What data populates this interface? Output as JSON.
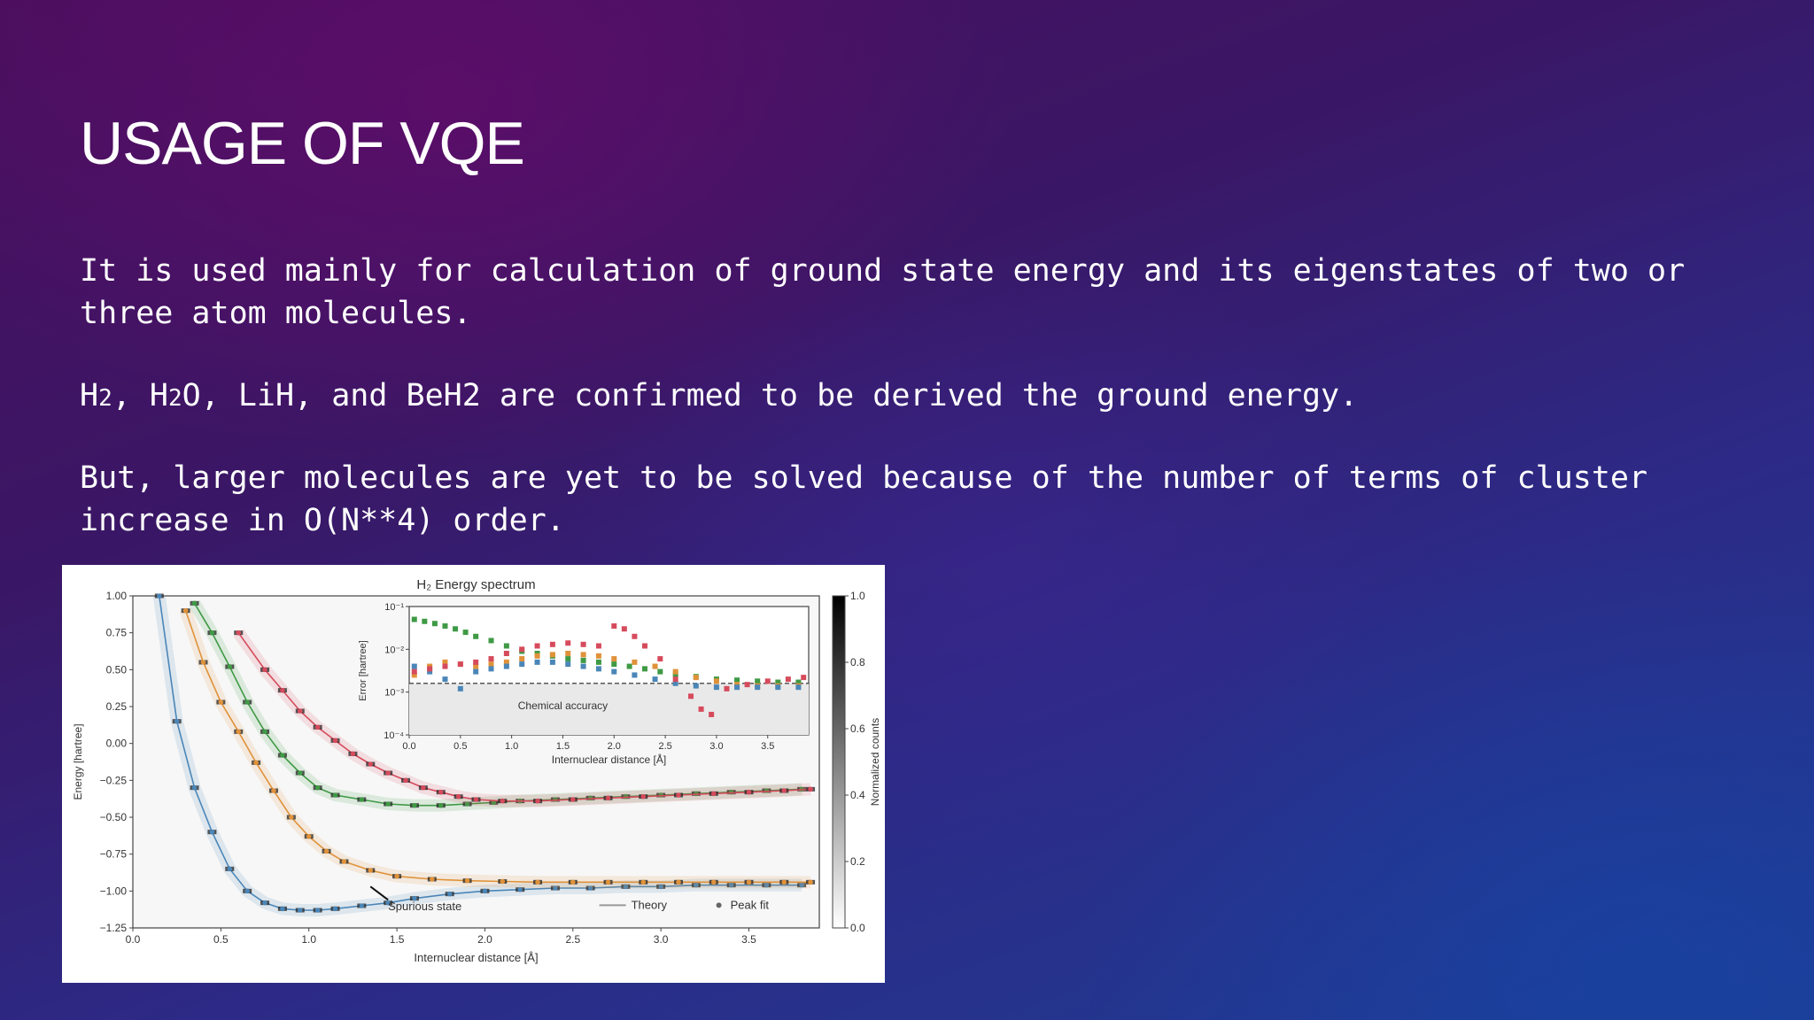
{
  "slide": {
    "title": "USAGE OF VQE",
    "paragraphs": [
      "It is used mainly for calculation of ground state energy and its eigenstates of two or three atom molecules.",
      "H2, H2O, LiH, and BeH2 are confirmed to be derived the ground energy.",
      "But, larger molecules are yet to be solved because of the number of terms of cluster increase in O(N**4) order."
    ]
  },
  "chart_data": [
    {
      "type": "line",
      "title": "H₂ Energy spectrum",
      "xlabel": "Internuclear distance [Å]",
      "ylabel": "Energy [hartree]",
      "xlim": [
        0.0,
        3.9
      ],
      "ylim": [
        -1.25,
        1.0
      ],
      "xticks": [
        "0.0",
        "0.5",
        "1.0",
        "1.5",
        "2.0",
        "2.5",
        "3.0",
        "3.5"
      ],
      "yticks": [
        "1.00",
        "0.75",
        "0.50",
        "0.25",
        "0.00",
        "−0.25",
        "−0.50",
        "−0.75",
        "−1.00",
        "−1.25"
      ],
      "legend": [
        "Theory",
        "Peak fit"
      ],
      "legend_position": "bottom-right",
      "annotation": "Spurious state",
      "colorbar": {
        "label": "Normalized counts",
        "ticks": [
          "0.0",
          "0.2",
          "0.4",
          "0.6",
          "0.8",
          "1.0"
        ],
        "range": [
          0,
          1
        ]
      },
      "colors": {
        "blue": "#4a86b8",
        "orange": "#e0923a",
        "green": "#3f9a45",
        "red": "#d64b5c"
      },
      "series": [
        {
          "color": "blue",
          "x": [
            0.15,
            0.25,
            0.35,
            0.45,
            0.55,
            0.65,
            0.75,
            0.85,
            0.95,
            1.05,
            1.15,
            1.3,
            1.45,
            1.6,
            1.8,
            2.0,
            2.2,
            2.4,
            2.6,
            2.8,
            3.0,
            3.2,
            3.4,
            3.6,
            3.8
          ],
          "values": [
            1.0,
            0.15,
            -0.3,
            -0.6,
            -0.85,
            -1.0,
            -1.08,
            -1.12,
            -1.13,
            -1.13,
            -1.12,
            -1.1,
            -1.08,
            -1.05,
            -1.02,
            -1.0,
            -0.99,
            -0.98,
            -0.98,
            -0.97,
            -0.97,
            -0.96,
            -0.96,
            -0.96,
            -0.96
          ]
        },
        {
          "color": "orange",
          "x": [
            0.3,
            0.4,
            0.5,
            0.6,
            0.7,
            0.8,
            0.9,
            1.0,
            1.1,
            1.2,
            1.35,
            1.5,
            1.7,
            1.9,
            2.1,
            2.3,
            2.5,
            2.7,
            2.9,
            3.1,
            3.3,
            3.5,
            3.7,
            3.85
          ],
          "values": [
            0.9,
            0.55,
            0.28,
            0.08,
            -0.13,
            -0.32,
            -0.5,
            -0.63,
            -0.73,
            -0.8,
            -0.86,
            -0.9,
            -0.92,
            -0.93,
            -0.935,
            -0.94,
            -0.94,
            -0.94,
            -0.94,
            -0.94,
            -0.94,
            -0.94,
            -0.94,
            -0.94
          ]
        },
        {
          "color": "green",
          "x": [
            0.35,
            0.45,
            0.55,
            0.65,
            0.75,
            0.85,
            0.95,
            1.05,
            1.15,
            1.3,
            1.45,
            1.6,
            1.75,
            1.9,
            2.05,
            2.2,
            2.4,
            2.6,
            2.8,
            3.0,
            3.2,
            3.4,
            3.6,
            3.8
          ],
          "values": [
            0.95,
            0.75,
            0.52,
            0.28,
            0.08,
            -0.08,
            -0.2,
            -0.3,
            -0.35,
            -0.38,
            -0.41,
            -0.42,
            -0.42,
            -0.41,
            -0.4,
            -0.39,
            -0.38,
            -0.37,
            -0.36,
            -0.35,
            -0.34,
            -0.33,
            -0.32,
            -0.31
          ]
        },
        {
          "color": "red",
          "x": [
            0.6,
            0.75,
            0.85,
            0.95,
            1.05,
            1.15,
            1.25,
            1.35,
            1.45,
            1.55,
            1.65,
            1.75,
            1.85,
            1.95,
            2.1,
            2.3,
            2.5,
            2.7,
            2.9,
            3.1,
            3.3,
            3.5,
            3.7,
            3.85
          ],
          "values": [
            0.75,
            0.5,
            0.36,
            0.22,
            0.11,
            0.02,
            -0.07,
            -0.14,
            -0.2,
            -0.25,
            -0.3,
            -0.33,
            -0.36,
            -0.38,
            -0.39,
            -0.39,
            -0.38,
            -0.37,
            -0.36,
            -0.35,
            -0.34,
            -0.33,
            -0.32,
            -0.31
          ]
        }
      ]
    },
    {
      "type": "scatter",
      "xlabel": "Internuclear distance [Å]",
      "ylabel": "Error [hartree]",
      "log_y": true,
      "xlim": [
        0.0,
        3.9
      ],
      "ylim": [
        0.0001,
        0.1
      ],
      "xticks": [
        "0.0",
        "0.5",
        "1.0",
        "1.5",
        "2.0",
        "2.5",
        "3.0",
        "3.5"
      ],
      "yticks": [
        "10⁻¹",
        "10⁻²",
        "10⁻³",
        "10⁻⁴"
      ],
      "threshold_label": "Chemical accuracy",
      "threshold": 0.0016,
      "series": [
        {
          "color": "green",
          "x": [
            0.05,
            0.15,
            0.25,
            0.35,
            0.45,
            0.55,
            0.65,
            0.8,
            0.95,
            1.1,
            1.25,
            1.4,
            1.55,
            1.7,
            1.85,
            2.0,
            2.15,
            2.3,
            2.45,
            2.6,
            2.8,
            3.0,
            3.2,
            3.4,
            3.6,
            3.8
          ],
          "values": [
            0.05,
            0.045,
            0.04,
            0.035,
            0.03,
            0.025,
            0.02,
            0.016,
            0.012,
            0.009,
            0.008,
            0.007,
            0.006,
            0.0055,
            0.005,
            0.0045,
            0.004,
            0.0035,
            0.003,
            0.0026,
            0.0023,
            0.002,
            0.0019,
            0.0018,
            0.0017,
            0.0017
          ]
        },
        {
          "color": "orange",
          "x": [
            0.05,
            0.2,
            0.35,
            0.5,
            0.65,
            0.8,
            0.95,
            1.1,
            1.25,
            1.4,
            1.55,
            1.7,
            1.85,
            2.0,
            2.2,
            2.4,
            2.6,
            2.8,
            3.0,
            3.2,
            3.4,
            3.6,
            3.8
          ],
          "values": [
            0.0025,
            0.004,
            0.005,
            0.0045,
            0.004,
            0.0045,
            0.005,
            0.006,
            0.007,
            0.0075,
            0.008,
            0.0075,
            0.007,
            0.006,
            0.005,
            0.004,
            0.003,
            0.0022,
            0.0018,
            0.0015,
            0.0014,
            0.0014,
            0.0014
          ]
        },
        {
          "color": "blue",
          "x": [
            0.05,
            0.2,
            0.35,
            0.5,
            0.65,
            0.8,
            0.95,
            1.1,
            1.25,
            1.4,
            1.55,
            1.7,
            1.85,
            2.0,
            2.2,
            2.4,
            2.6,
            2.8,
            3.0,
            3.2,
            3.4,
            3.6,
            3.8
          ],
          "values": [
            0.004,
            0.003,
            0.002,
            0.0012,
            0.003,
            0.0035,
            0.004,
            0.0045,
            0.005,
            0.005,
            0.0045,
            0.004,
            0.0035,
            0.003,
            0.0025,
            0.002,
            0.0016,
            0.0014,
            0.0013,
            0.0013,
            0.0013,
            0.0013,
            0.0013
          ]
        },
        {
          "color": "red",
          "x": [
            0.05,
            0.2,
            0.35,
            0.5,
            0.65,
            0.8,
            0.95,
            1.1,
            1.25,
            1.4,
            1.55,
            1.7,
            1.85,
            2.0,
            2.1,
            2.2,
            2.3,
            2.45,
            2.6,
            2.75,
            2.85,
            2.95,
            3.1,
            3.3,
            3.5,
            3.7,
            3.85
          ],
          "values": [
            0.003,
            0.0035,
            0.004,
            0.0045,
            0.005,
            0.006,
            0.008,
            0.01,
            0.012,
            0.013,
            0.014,
            0.013,
            0.012,
            0.035,
            0.03,
            0.02,
            0.012,
            0.006,
            0.002,
            0.0008,
            0.0004,
            0.0003,
            0.0012,
            0.0015,
            0.0018,
            0.002,
            0.0022
          ]
        }
      ]
    }
  ]
}
